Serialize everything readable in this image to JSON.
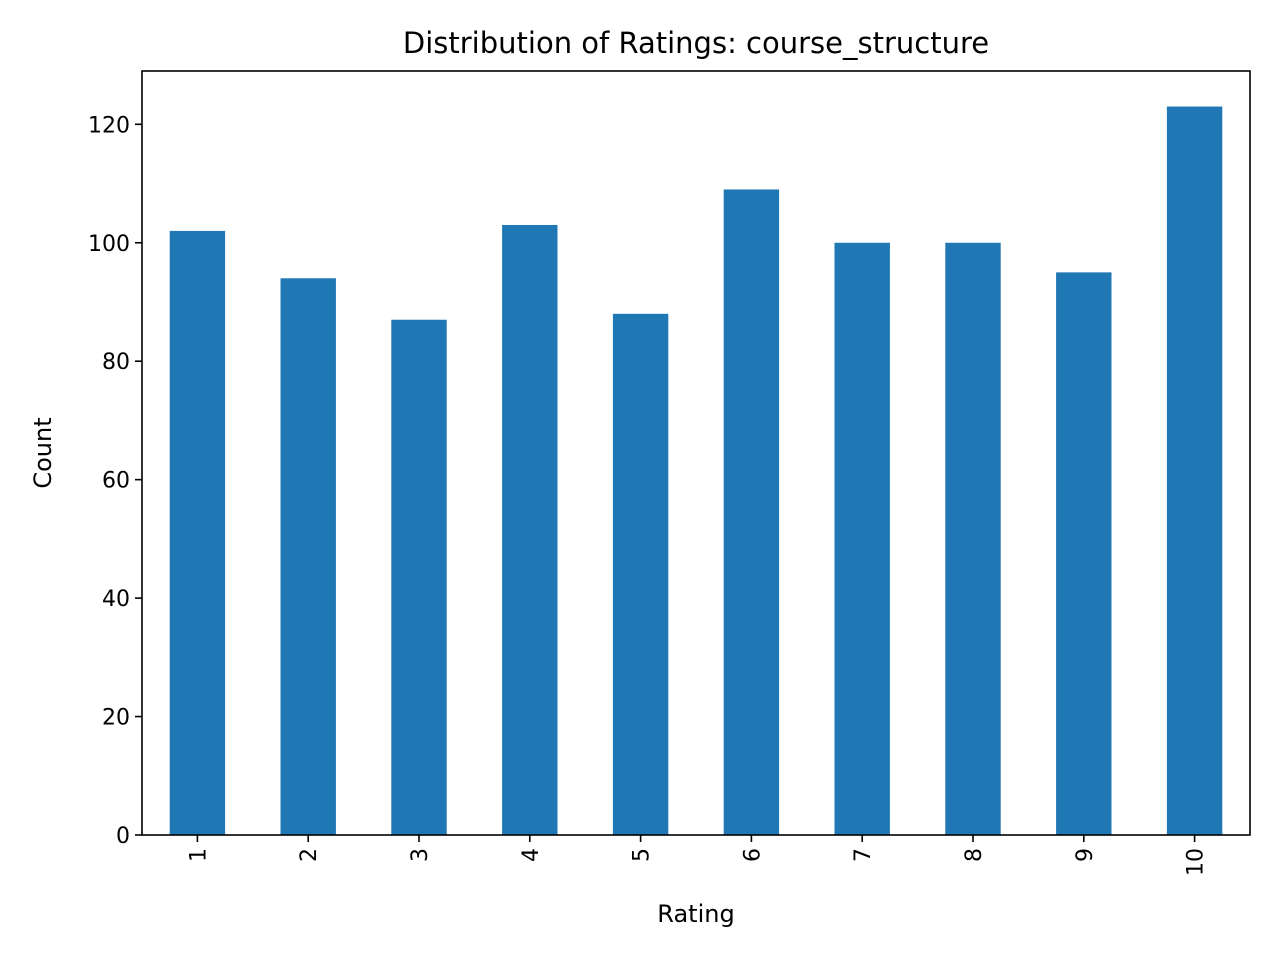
{
  "chart_data": {
    "type": "bar",
    "title": "Distribution of Ratings: course_structure",
    "xlabel": "Rating",
    "ylabel": "Count",
    "categories": [
      "1",
      "2",
      "3",
      "4",
      "5",
      "6",
      "7",
      "8",
      "9",
      "10"
    ],
    "values": [
      102,
      94,
      87,
      103,
      88,
      109,
      100,
      100,
      95,
      123
    ],
    "ylim": [
      0,
      129
    ],
    "yticks": [
      0,
      20,
      40,
      60,
      80,
      100,
      120
    ],
    "xtick_rotation": 90,
    "grid": false,
    "legend": "none",
    "bar_color": "#1f77b4"
  }
}
